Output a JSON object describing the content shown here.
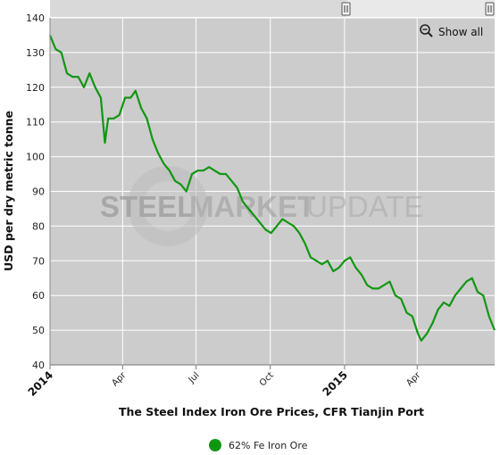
{
  "chart_data": {
    "type": "line",
    "title": "The Steel Index Iron Ore Prices, CFR Tianjin Port",
    "ylabel": "USD per dry metric tonne",
    "ylim": [
      40,
      140
    ],
    "y_ticks": [
      "40",
      "50",
      "60",
      "70",
      "80",
      "90",
      "100",
      "110",
      "120",
      "130",
      "140"
    ],
    "x_range": [
      "2014-01-01",
      "2015-07-06"
    ],
    "x_ticks": [
      {
        "date": "2014-01-01",
        "label": "2014",
        "major": true
      },
      {
        "date": "2014-04-01",
        "label": "Apr",
        "major": false
      },
      {
        "date": "2014-07-01",
        "label": "Jul",
        "major": false
      },
      {
        "date": "2014-10-01",
        "label": "Oct",
        "major": false
      },
      {
        "date": "2015-01-01",
        "label": "2015",
        "major": true
      },
      {
        "date": "2015-04-01",
        "label": "Apr",
        "major": false
      }
    ],
    "grid": true,
    "legend_position": "bottom-center",
    "series": [
      {
        "name": "62% Fe Iron Ore",
        "color": "#129612",
        "points": [
          [
            "2014-01-01",
            135
          ],
          [
            "2014-01-08",
            131
          ],
          [
            "2014-01-15",
            130
          ],
          [
            "2014-01-22",
            124
          ],
          [
            "2014-01-29",
            123
          ],
          [
            "2014-02-05",
            123
          ],
          [
            "2014-02-12",
            120
          ],
          [
            "2014-02-19",
            124
          ],
          [
            "2014-02-26",
            120
          ],
          [
            "2014-03-05",
            117
          ],
          [
            "2014-03-10",
            104
          ],
          [
            "2014-03-14",
            111
          ],
          [
            "2014-03-21",
            111
          ],
          [
            "2014-03-28",
            112
          ],
          [
            "2014-04-04",
            117
          ],
          [
            "2014-04-11",
            117
          ],
          [
            "2014-04-17",
            119
          ],
          [
            "2014-04-24",
            114
          ],
          [
            "2014-05-01",
            111
          ],
          [
            "2014-05-08",
            105
          ],
          [
            "2014-05-15",
            101
          ],
          [
            "2014-05-22",
            98
          ],
          [
            "2014-05-29",
            96
          ],
          [
            "2014-06-05",
            93
          ],
          [
            "2014-06-12",
            92
          ],
          [
            "2014-06-19",
            90
          ],
          [
            "2014-06-26",
            95
          ],
          [
            "2014-07-03",
            96
          ],
          [
            "2014-07-10",
            96
          ],
          [
            "2014-07-17",
            97
          ],
          [
            "2014-07-24",
            96
          ],
          [
            "2014-07-31",
            95
          ],
          [
            "2014-08-07",
            95
          ],
          [
            "2014-08-14",
            93
          ],
          [
            "2014-08-21",
            91
          ],
          [
            "2014-08-28",
            87
          ],
          [
            "2014-09-04",
            85
          ],
          [
            "2014-09-11",
            83
          ],
          [
            "2014-09-18",
            81
          ],
          [
            "2014-09-25",
            79
          ],
          [
            "2014-10-02",
            78
          ],
          [
            "2014-10-09",
            80
          ],
          [
            "2014-10-16",
            82
          ],
          [
            "2014-10-23",
            81
          ],
          [
            "2014-10-30",
            80
          ],
          [
            "2014-11-06",
            78
          ],
          [
            "2014-11-13",
            75
          ],
          [
            "2014-11-20",
            71
          ],
          [
            "2014-11-27",
            70
          ],
          [
            "2014-12-04",
            69
          ],
          [
            "2014-12-11",
            70
          ],
          [
            "2014-12-18",
            67
          ],
          [
            "2014-12-25",
            68
          ],
          [
            "2015-01-01",
            70
          ],
          [
            "2015-01-08",
            71
          ],
          [
            "2015-01-15",
            68
          ],
          [
            "2015-01-22",
            66
          ],
          [
            "2015-01-29",
            63
          ],
          [
            "2015-02-05",
            62
          ],
          [
            "2015-02-12",
            62
          ],
          [
            "2015-02-19",
            63
          ],
          [
            "2015-02-26",
            64
          ],
          [
            "2015-03-05",
            60
          ],
          [
            "2015-03-12",
            59
          ],
          [
            "2015-03-19",
            55
          ],
          [
            "2015-03-26",
            54
          ],
          [
            "2015-04-02",
            49
          ],
          [
            "2015-04-06",
            47
          ],
          [
            "2015-04-13",
            49
          ],
          [
            "2015-04-20",
            52
          ],
          [
            "2015-04-27",
            56
          ],
          [
            "2015-05-04",
            58
          ],
          [
            "2015-05-11",
            57
          ],
          [
            "2015-05-18",
            60
          ],
          [
            "2015-05-25",
            62
          ],
          [
            "2015-06-01",
            64
          ],
          [
            "2015-06-08",
            65
          ],
          [
            "2015-06-15",
            61
          ],
          [
            "2015-06-22",
            60
          ],
          [
            "2015-06-29",
            54
          ],
          [
            "2015-07-06",
            50
          ]
        ]
      }
    ]
  },
  "watermark": {
    "bold": "STEEL",
    "mid": "MARKET",
    "light": "UPDATE"
  },
  "toolbar": {
    "show_all_label": "Show all"
  },
  "navigator": {
    "handle_glyph": "||"
  }
}
